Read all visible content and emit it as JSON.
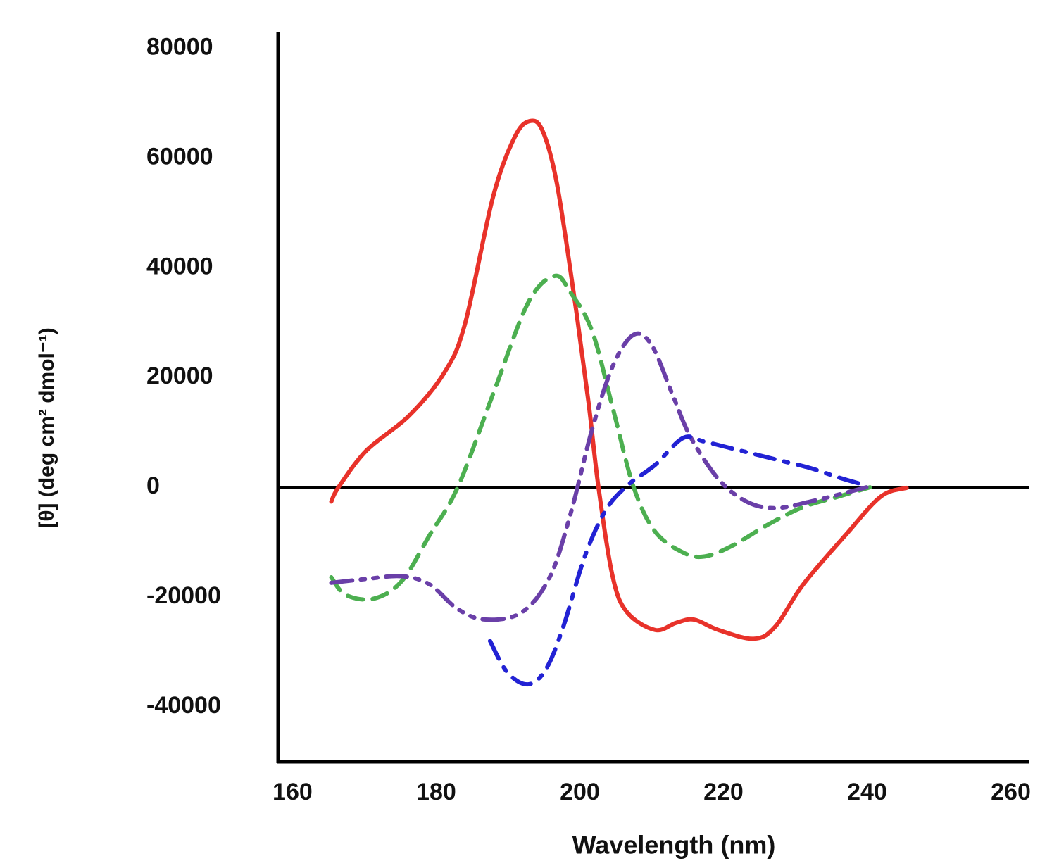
{
  "chart_data": {
    "type": "line",
    "xlabel": "Wavelength (nm)",
    "ylabel": "[θ] (deg cm² dmol⁻¹)",
    "xlim": [
      158,
      262.5
    ],
    "xticks": [
      160,
      180,
      200,
      220,
      240,
      260
    ],
    "ylim": [
      -50000,
      83000
    ],
    "yticks": [
      -40000,
      -20000,
      0,
      20000,
      40000,
      60000,
      80000
    ],
    "series": [
      {
        "color": "#e8322a",
        "linestyle": "solid",
        "x": [
          165.4,
          166.4,
          170.3,
          176.2,
          181.1,
          184,
          187.9,
          190.9,
          193,
          194.8,
          196.8,
          199.2,
          201.2,
          202.6,
          204.6,
          206.6,
          210.5,
          213.4,
          215.9,
          219.3,
          224.2,
          227.2,
          231.1,
          237,
          241.9,
          245.5
        ],
        "values": [
          -2600,
          0,
          6700,
          13000,
          20800,
          29700,
          52800,
          63700,
          66700,
          65000,
          55400,
          34900,
          15600,
          0,
          -16400,
          -22800,
          -26000,
          -24700,
          -24100,
          -26000,
          -27600,
          -25400,
          -17700,
          -8700,
          -1700,
          -100
        ]
      },
      {
        "color": "#4caf50",
        "linestyle": "dashed",
        "x": [
          165.4,
          167.4,
          171.3,
          175.2,
          179.1,
          183,
          187.9,
          192.8,
          196.5,
          198.7,
          201.7,
          204.6,
          207.5,
          210.5,
          214.4,
          217.4,
          221.3,
          226.2,
          231.1,
          236,
          240.4
        ],
        "values": [
          -16400,
          -19600,
          -20300,
          -17100,
          -8700,
          0,
          16900,
          33600,
          38500,
          35500,
          28500,
          14400,
          0,
          -8100,
          -11900,
          -12600,
          -10600,
          -6800,
          -3600,
          -1700,
          0
        ]
      },
      {
        "color": "#6a3fa8",
        "linestyle": "dashdotdot",
        "x": [
          165.4,
          170.3,
          175.2,
          179.1,
          183,
          186.9,
          191.9,
          195.8,
          198.7,
          201.7,
          204.6,
          207.5,
          210,
          212.9,
          215.4,
          219.3,
          223.2,
          227.2,
          232.1,
          237,
          239.9
        ],
        "values": [
          -17400,
          -16700,
          -16200,
          -17700,
          -22200,
          -24100,
          -22800,
          -16400,
          -4900,
          10500,
          22100,
          27800,
          25900,
          16900,
          9200,
          1500,
          -2600,
          -3800,
          -2600,
          -1000,
          0
        ]
      },
      {
        "color": "#2222d4",
        "linestyle": "dashdot",
        "x": [
          187.5,
          189.9,
          192.8,
          195.3,
          197.7,
          200.7,
          203.6,
          206.6,
          210.5,
          214.4,
          217.4,
          222.3,
          227.2,
          232.1,
          236,
          239.4
        ],
        "values": [
          -28000,
          -33700,
          -35900,
          -33100,
          -25400,
          -12600,
          -4200,
          300,
          4100,
          9000,
          8300,
          6700,
          5100,
          3500,
          1800,
          500
        ]
      }
    ]
  }
}
